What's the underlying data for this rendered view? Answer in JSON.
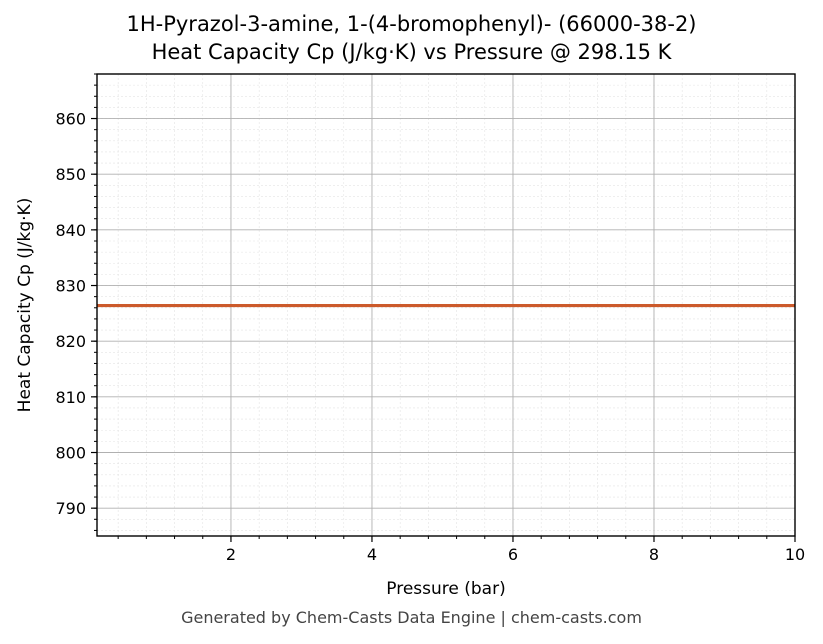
{
  "chart_data": {
    "type": "line",
    "title": "1H-Pyrazol-3-amine, 1-(4-bromophenyl)- (66000-38-2)",
    "subtitle": "Heat Capacity Cp (J/kg·K) vs Pressure @ 298.15 K",
    "xlabel": "Pressure (bar)",
    "ylabel": "Heat Capacity Cp (J/kg·K)",
    "xlim": [
      0.1,
      10
    ],
    "ylim": [
      785,
      868
    ],
    "xticks": [
      2,
      4,
      6,
      8,
      10
    ],
    "yticks": [
      790,
      800,
      810,
      820,
      830,
      840,
      850,
      860
    ],
    "grid": true,
    "series": [
      {
        "x": [
          0.1,
          1,
          2,
          3,
          4,
          5,
          6,
          7,
          8,
          9,
          10
        ],
        "y": [
          826.4,
          826.4,
          826.4,
          826.4,
          826.4,
          826.4,
          826.4,
          826.4,
          826.4,
          826.4,
          826.4
        ],
        "color": "#cc5a2b"
      }
    ]
  },
  "footer": "Generated by Chem-Casts Data Engine | chem-casts.com"
}
